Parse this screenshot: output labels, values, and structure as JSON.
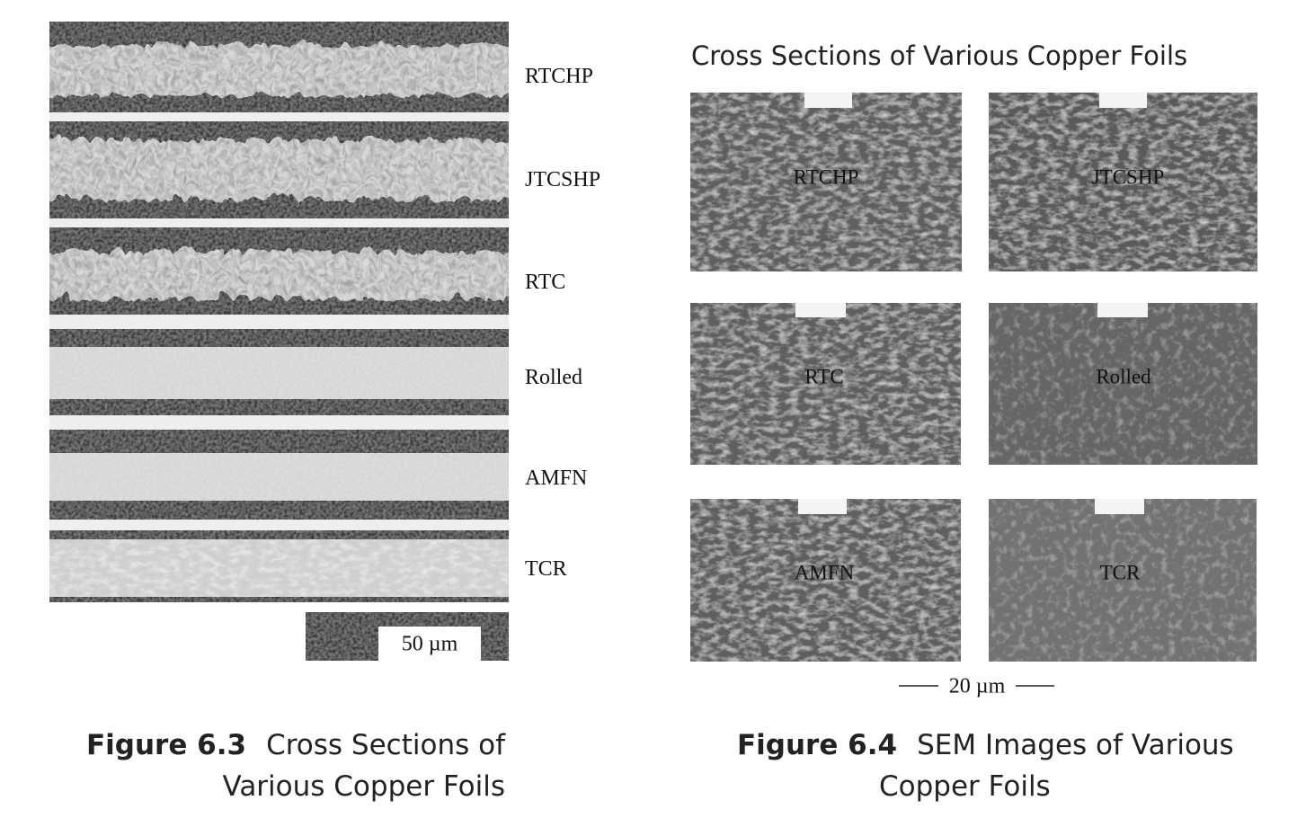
{
  "figure_6_3": {
    "labels": [
      "RTCHP",
      "JTCSHP",
      "RTC",
      "Rolled",
      "AMFN",
      "TCR"
    ],
    "scale_bar": "50 µm",
    "caption": {
      "number": "Figure 6.3",
      "text": "Cross Sections of Various Copper Foils"
    }
  },
  "figure_6_4": {
    "title": "Cross Sections of Various Copper Foils",
    "panels": [
      "RTCHP",
      "JTCSHP",
      "RTC",
      "Rolled",
      "AMFN",
      "TCR"
    ],
    "scale_bar": "20 µm",
    "caption": {
      "number": "Figure 6.4",
      "text": "SEM Images of Various Copper Foils"
    }
  }
}
